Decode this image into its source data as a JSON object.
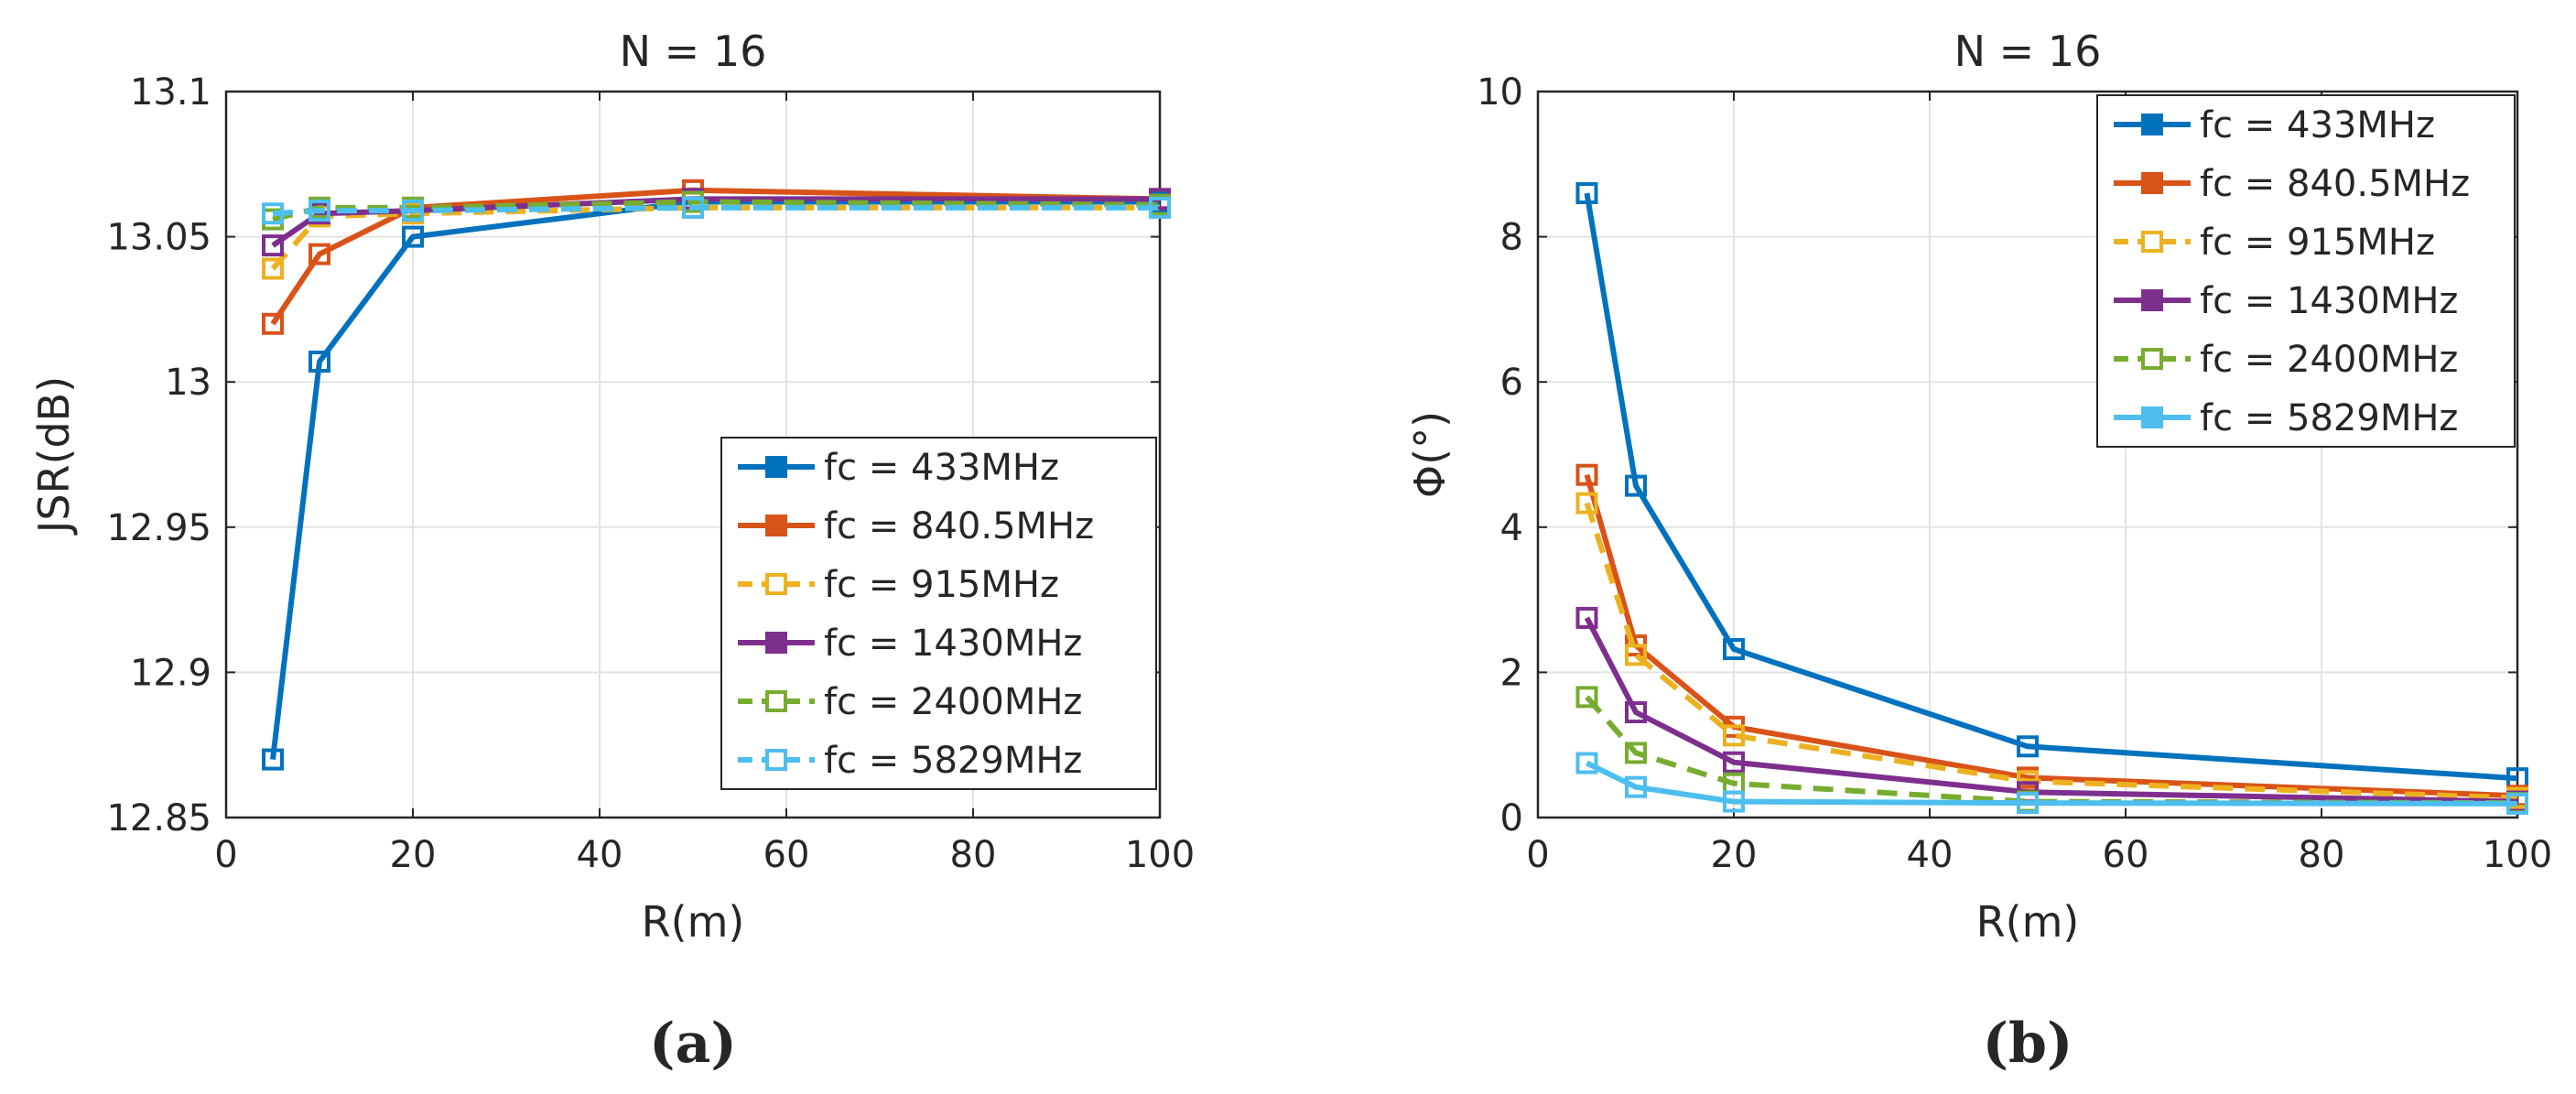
{
  "chart_data": [
    {
      "panel_label": "(a)",
      "type": "line",
      "title": "N = 16",
      "xlabel": "R(m)",
      "ylabel": "JSR(dB)",
      "xlim": [
        0,
        100
      ],
      "ylim": [
        12.85,
        13.1
      ],
      "x_ticks": [
        "0",
        "20",
        "40",
        "60",
        "80",
        "100"
      ],
      "y_ticks": [
        "12.85",
        "12.9",
        "12.95",
        "13",
        "13.05",
        "13.1"
      ],
      "grid": true,
      "legend_position": "bottom-right",
      "x": [
        5,
        10,
        20,
        50,
        100
      ],
      "series": [
        {
          "name": "fc = 433MHz",
          "values": [
            12.87,
            13.007,
            13.05,
            13.062,
            13.062
          ],
          "color": "#0072BD",
          "dash": "solid"
        },
        {
          "name": "fc = 840.5MHz",
          "values": [
            13.02,
            13.044,
            13.06,
            13.066,
            13.063
          ],
          "color": "#D95319",
          "dash": "solid"
        },
        {
          "name": "fc = 915MHz",
          "values": [
            13.039,
            13.057,
            13.058,
            13.06,
            13.06
          ],
          "color": "#EDB120",
          "dash": "dashed"
        },
        {
          "name": "fc = 1430MHz",
          "values": [
            13.047,
            13.058,
            13.059,
            13.063,
            13.063
          ],
          "color": "#7E2F8E",
          "dash": "solid"
        },
        {
          "name": "fc = 2400MHz",
          "values": [
            13.056,
            13.06,
            13.06,
            13.062,
            13.061
          ],
          "color": "#77AC30",
          "dash": "dashed"
        },
        {
          "name": "fc = 5829MHz",
          "values": [
            13.058,
            13.059,
            13.059,
            13.06,
            13.06
          ],
          "color": "#4DBEEE",
          "dash": "dashed"
        }
      ]
    },
    {
      "panel_label": "(b)",
      "type": "line",
      "title": "N = 16",
      "xlabel": "R(m)",
      "ylabel": "Φ(°)",
      "xlim": [
        0,
        100
      ],
      "ylim": [
        0,
        10
      ],
      "x_ticks": [
        "0",
        "20",
        "40",
        "60",
        "80",
        "100"
      ],
      "y_ticks": [
        "0",
        "2",
        "4",
        "6",
        "8",
        "10"
      ],
      "grid": true,
      "legend_position": "top-right",
      "x": [
        5,
        10,
        20,
        50,
        100
      ],
      "series": [
        {
          "name": "fc = 433MHz",
          "values": [
            8.6,
            4.57,
            2.32,
            0.98,
            0.54
          ],
          "color": "#0072BD",
          "dash": "solid"
        },
        {
          "name": "fc = 840.5MHz",
          "values": [
            4.72,
            2.37,
            1.25,
            0.55,
            0.3
          ],
          "color": "#D95319",
          "dash": "solid"
        },
        {
          "name": "fc = 915MHz",
          "values": [
            4.33,
            2.24,
            1.13,
            0.5,
            0.27
          ],
          "color": "#EDB120",
          "dash": "dashed"
        },
        {
          "name": "fc = 1430MHz",
          "values": [
            2.75,
            1.45,
            0.76,
            0.35,
            0.22
          ],
          "color": "#7E2F8E",
          "dash": "solid"
        },
        {
          "name": "fc = 2400MHz",
          "values": [
            1.66,
            0.89,
            0.47,
            0.22,
            0.2
          ],
          "color": "#77AC30",
          "dash": "dashed"
        },
        {
          "name": "fc = 5829MHz",
          "values": [
            0.75,
            0.42,
            0.22,
            0.2,
            0.19
          ],
          "color": "#4DBEEE",
          "dash": "solid"
        }
      ]
    }
  ]
}
